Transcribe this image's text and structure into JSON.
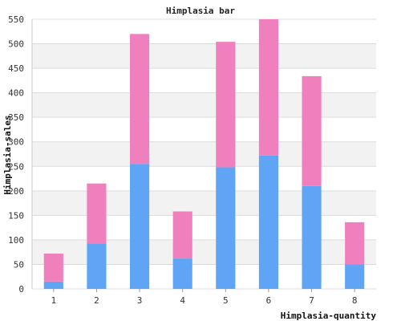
{
  "chart_data": {
    "type": "bar",
    "stacked": true,
    "title": "Himplasia bar",
    "xlabel": "Himplasia-quantity",
    "ylabel": "Himplasia-sales",
    "categories": [
      "1",
      "2",
      "3",
      "4",
      "5",
      "6",
      "7",
      "8"
    ],
    "series": [
      {
        "values": [
          15,
          93,
          255,
          62,
          248,
          272,
          210,
          50
        ],
        "color": "#60a5f5"
      },
      {
        "values": [
          57,
          122,
          265,
          96,
          256,
          278,
          224,
          86
        ],
        "color": "#f080bd"
      }
    ],
    "ylim": [
      0,
      550
    ],
    "yticks": [
      0,
      50,
      100,
      150,
      200,
      250,
      300,
      350,
      400,
      450,
      500,
      550
    ],
    "grid": true,
    "legend": "none"
  }
}
